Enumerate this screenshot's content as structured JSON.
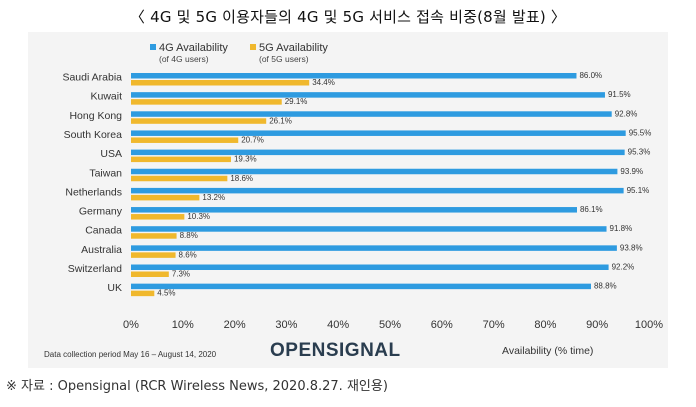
{
  "header": {
    "title": "〈 4G 및 5G 이용자들의 4G 및 5G 서비스 접속 비중(8월 발표) 〉"
  },
  "footer": {
    "source": "※ 자료 : Opensignal (RCR Wireless News, 2020.8.27. 재인용)"
  },
  "chart_data": {
    "type": "bar",
    "orientation": "horizontal",
    "categories": [
      "Saudi Arabia",
      "Kuwait",
      "Hong Kong",
      "South Korea",
      "USA",
      "Taiwan",
      "Netherlands",
      "Germany",
      "Canada",
      "Australia",
      "Switzerland",
      "UK"
    ],
    "series": [
      {
        "name": "4G Availability",
        "subtitle": "(of 4G users)",
        "color": "#2e9be0",
        "values": [
          86.0,
          91.5,
          92.8,
          95.5,
          95.3,
          93.9,
          95.1,
          86.1,
          91.8,
          93.8,
          92.2,
          88.8
        ],
        "labels": [
          "86.0%",
          "91.5%",
          "92.8%",
          "95.5%",
          "95.3%",
          "93.9%",
          "95.1%",
          "86.1%",
          "91.8%",
          "93.8%",
          "92.2%",
          "88.8%"
        ]
      },
      {
        "name": "5G Availability",
        "subtitle": "(of 5G users)",
        "color": "#f0b82d",
        "values": [
          34.4,
          29.1,
          26.1,
          20.7,
          19.3,
          18.6,
          13.2,
          10.3,
          8.8,
          8.6,
          7.3,
          4.5
        ],
        "labels": [
          "34.4%",
          "29.1%",
          "26.1%",
          "20.7%",
          "19.3%",
          "18.6%",
          "13.2%",
          "10.3%",
          "8.8%",
          "8.6%",
          "7.3%",
          "4.5%"
        ]
      }
    ],
    "xlim": [
      0,
      100
    ],
    "xticks": [
      "0%",
      "10%",
      "20%",
      "30%",
      "40%",
      "50%",
      "60%",
      "70%",
      "80%",
      "90%",
      "100%"
    ],
    "xlabel": "Availability (% time)",
    "note": "Data collection period May 16 – August 14, 2020",
    "logo": "OPENSIGNAL",
    "legend_position": "top-left",
    "grid": false
  }
}
